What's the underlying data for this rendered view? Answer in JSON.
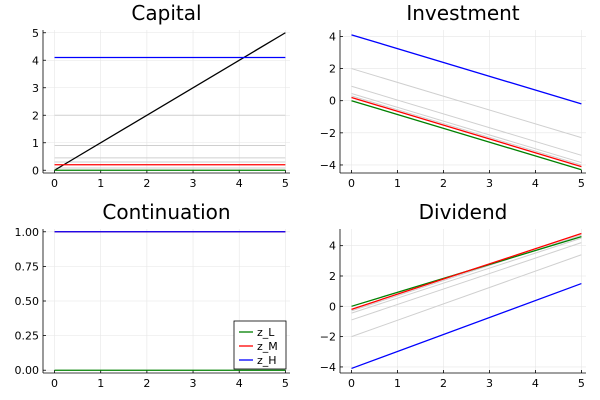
{
  "chart_data": [
    {
      "type": "line",
      "title": "Capital",
      "xlim": [
        -0.25,
        5.1
      ],
      "ylim": [
        -0.1,
        5.1
      ],
      "xticks": [
        0,
        1,
        2,
        3,
        4,
        5
      ],
      "yticks": [
        0,
        1,
        2,
        3,
        4,
        5
      ],
      "xtick_labels": [
        "0",
        "1",
        "2",
        "3",
        "4",
        "5"
      ],
      "ytick_labels": [
        "0",
        "1",
        "2",
        "3",
        "4",
        "5"
      ],
      "grid": true,
      "series": [
        {
          "color": "#cfcfcf",
          "x": [
            0,
            5
          ],
          "y": [
            0.08,
            0.08
          ]
        },
        {
          "color": "#cfcfcf",
          "x": [
            0,
            5
          ],
          "y": [
            0.3,
            0.3
          ]
        },
        {
          "color": "#cfcfcf",
          "x": [
            0,
            5
          ],
          "y": [
            0.45,
            0.45
          ]
        },
        {
          "color": "#cfcfcf",
          "x": [
            0,
            5
          ],
          "y": [
            0.9,
            0.9
          ]
        },
        {
          "color": "#cfcfcf",
          "x": [
            0,
            5
          ],
          "y": [
            2.0,
            2.0
          ]
        },
        {
          "color": "#000000",
          "x": [
            0,
            5
          ],
          "y": [
            0,
            5
          ]
        },
        {
          "color": "#008000",
          "x": [
            0,
            5
          ],
          "y": [
            0.0,
            0.0
          ]
        },
        {
          "color": "#ff0000",
          "x": [
            0,
            5
          ],
          "y": [
            0.2,
            0.2
          ]
        },
        {
          "color": "#0000ff",
          "x": [
            0,
            5
          ],
          "y": [
            4.1,
            4.1
          ]
        }
      ]
    },
    {
      "type": "line",
      "title": "Investment",
      "xlim": [
        -0.25,
        5.1
      ],
      "ylim": [
        -4.5,
        4.4
      ],
      "xticks": [
        0,
        1,
        2,
        3,
        4,
        5
      ],
      "yticks": [
        -4,
        -2,
        0,
        2,
        4
      ],
      "xtick_labels": [
        "0",
        "1",
        "2",
        "3",
        "4",
        "5"
      ],
      "ytick_labels": [
        "−4",
        "−2",
        "0",
        "2",
        "4"
      ],
      "grid": true,
      "series": [
        {
          "color": "#cfcfcf",
          "x": [
            0,
            5
          ],
          "y": [
            2.0,
            -2.3
          ]
        },
        {
          "color": "#cfcfcf",
          "x": [
            0,
            5
          ],
          "y": [
            0.9,
            -3.4
          ]
        },
        {
          "color": "#cfcfcf",
          "x": [
            0,
            5
          ],
          "y": [
            0.45,
            -3.85
          ]
        },
        {
          "color": "#cfcfcf",
          "x": [
            0,
            5
          ],
          "y": [
            0.3,
            -4.0
          ]
        },
        {
          "color": "#008000",
          "x": [
            0,
            5
          ],
          "y": [
            0.0,
            -4.3
          ]
        },
        {
          "color": "#ff0000",
          "x": [
            0,
            5
          ],
          "y": [
            0.2,
            -4.1
          ]
        },
        {
          "color": "#0000ff",
          "x": [
            0,
            5
          ],
          "y": [
            4.1,
            -0.2
          ]
        }
      ]
    },
    {
      "type": "line",
      "title": "Continuation",
      "xlim": [
        -0.25,
        5.1
      ],
      "ylim": [
        -0.02,
        1.02
      ],
      "xticks": [
        0,
        1,
        2,
        3,
        4,
        5
      ],
      "yticks": [
        0,
        0.25,
        0.5,
        0.75,
        1.0
      ],
      "xtick_labels": [
        "0",
        "1",
        "2",
        "3",
        "4",
        "5"
      ],
      "ytick_labels": [
        "0.00",
        "0.25",
        "0.50",
        "0.75",
        "1.00"
      ],
      "grid": true,
      "legend": "bottom-right",
      "legend_entries": [
        {
          "label": "z_L",
          "color": "#008000"
        },
        {
          "label": "z_M",
          "color": "#ff0000"
        },
        {
          "label": "z_H",
          "color": "#0000ff"
        }
      ],
      "series": [
        {
          "color": "#008000",
          "x": [
            0,
            5
          ],
          "y": [
            0.0,
            0.0
          ]
        },
        {
          "color": "#ff0000",
          "x": [
            0,
            5
          ],
          "y": [
            1.0,
            1.0
          ]
        },
        {
          "color": "#0000ff",
          "x": [
            0,
            5
          ],
          "y": [
            1.0,
            1.0
          ]
        }
      ]
    },
    {
      "type": "line",
      "title": "Dividend",
      "xlim": [
        -0.25,
        5.1
      ],
      "ylim": [
        -4.4,
        5.1
      ],
      "xticks": [
        0,
        1,
        2,
        3,
        4,
        5
      ],
      "yticks": [
        -4,
        -2,
        0,
        2,
        4
      ],
      "xtick_labels": [
        "0",
        "1",
        "2",
        "3",
        "4",
        "5"
      ],
      "ytick_labels": [
        "−4",
        "−2",
        "0",
        "2",
        "4"
      ],
      "grid": true,
      "series": [
        {
          "color": "#cfcfcf",
          "x": [
            0,
            5
          ],
          "y": [
            -2.0,
            3.4
          ]
        },
        {
          "color": "#cfcfcf",
          "x": [
            0,
            5
          ],
          "y": [
            -0.9,
            4.2
          ]
        },
        {
          "color": "#cfcfcf",
          "x": [
            0,
            5
          ],
          "y": [
            -0.45,
            4.5
          ]
        },
        {
          "color": "#cfcfcf",
          "x": [
            0,
            5
          ],
          "y": [
            -0.3,
            4.7
          ]
        },
        {
          "color": "#008000",
          "x": [
            0,
            5
          ],
          "y": [
            0.0,
            4.6
          ]
        },
        {
          "color": "#ff0000",
          "x": [
            0,
            5
          ],
          "y": [
            -0.2,
            4.8
          ]
        },
        {
          "color": "#0000ff",
          "x": [
            0,
            5
          ],
          "y": [
            -4.1,
            1.5
          ]
        }
      ]
    }
  ]
}
